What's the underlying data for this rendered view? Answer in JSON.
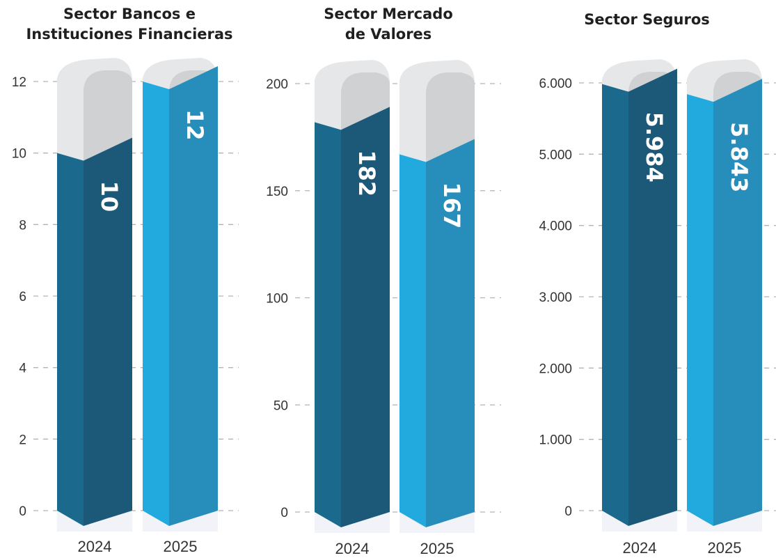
{
  "chart_data": [
    {
      "type": "bar",
      "title": "Sector Bancos e Instituciones Financieras",
      "title_lines": [
        "Sector Bancos e",
        "Instituciones Financieras"
      ],
      "categories": [
        "2024",
        "2025"
      ],
      "values": [
        10,
        12
      ],
      "value_labels": [
        "10",
        "12"
      ],
      "ylim": [
        0,
        12
      ],
      "yticks": [
        0,
        2,
        4,
        6,
        8,
        10,
        12
      ],
      "ytick_labels": [
        "0",
        "2",
        "4",
        "6",
        "8",
        "10",
        "12"
      ],
      "grid": true,
      "colors": {
        "2024": "#1b6a8e",
        "2025": "#22a9de"
      }
    },
    {
      "type": "bar",
      "title": "Sector Mercado de Valores",
      "title_lines": [
        "Sector Mercado",
        "de Valores"
      ],
      "categories": [
        "2024",
        "2025"
      ],
      "values": [
        182,
        167
      ],
      "value_labels": [
        "182",
        "167"
      ],
      "ylim": [
        0,
        200
      ],
      "yticks": [
        0,
        50,
        100,
        150,
        200
      ],
      "ytick_labels": [
        "0",
        "50",
        "100",
        "150",
        "200"
      ],
      "grid": true,
      "colors": {
        "2024": "#1b6a8e",
        "2025": "#22a9de"
      }
    },
    {
      "type": "bar",
      "title": "Sector Seguros",
      "title_lines": [
        "Sector Seguros"
      ],
      "categories": [
        "2024",
        "2025"
      ],
      "values": [
        5984,
        5843
      ],
      "value_labels": [
        "5.984",
        "5.843"
      ],
      "ylim": [
        0,
        6000
      ],
      "yticks": [
        0,
        1000,
        2000,
        3000,
        4000,
        5000,
        6000
      ],
      "ytick_labels": [
        "0",
        "1.000",
        "2.000",
        "3.000",
        "4.000",
        "5.000",
        "6.000"
      ],
      "grid": true,
      "colors": {
        "2024": "#1b6a8e",
        "2025": "#22a9de"
      }
    }
  ],
  "colors": {
    "bar_2024_front": "#1b6a8e",
    "bar_2024_side": "#1c5877",
    "bar_2025_front": "#22a9de",
    "bar_2025_side": "#278dba",
    "cap_light": "#e6e7e8",
    "cap_shade": "#cfd1d3",
    "grid": "#b3b3b3"
  }
}
